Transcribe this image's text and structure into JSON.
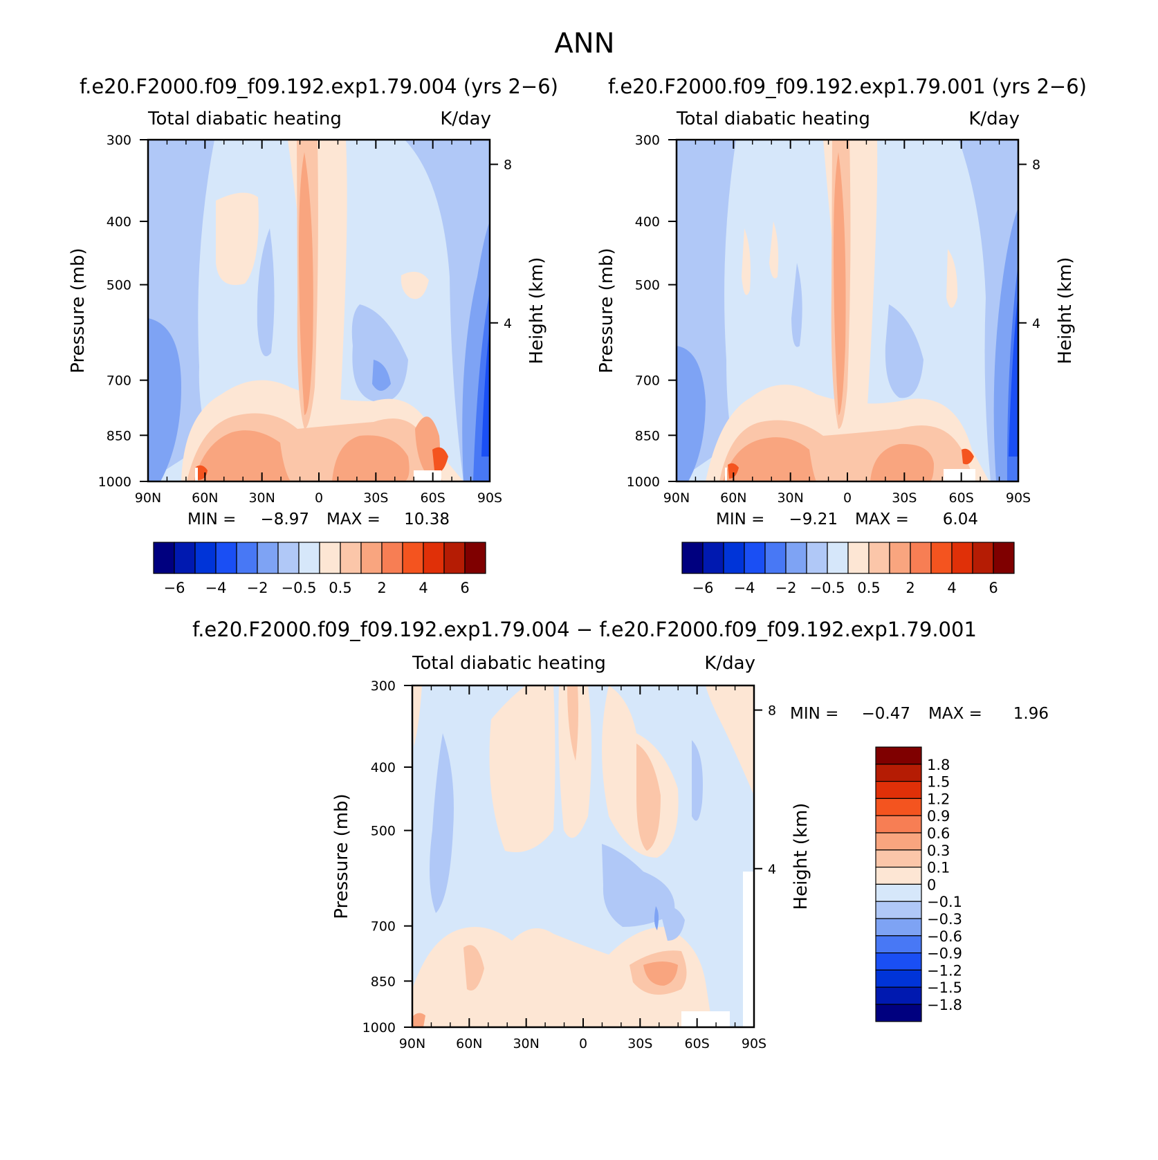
{
  "figure": {
    "title": "ANN"
  },
  "colors": {
    "full_palette": [
      "#00007f",
      "#0019b0",
      "#0034d8",
      "#1a4ff4",
      "#4878f5",
      "#7ea3f4",
      "#b0c8f7",
      "#d6e7fa",
      "#fde6d4",
      "#fbc6a9",
      "#f9a57f",
      "#f77e54",
      "#f4541f",
      "#e03008",
      "#b51c04",
      "#7f0000"
    ],
    "diff_palette": [
      "#00007f",
      "#0019b0",
      "#0034d8",
      "#1a4ff4",
      "#4878f5",
      "#7ea3f4",
      "#b0c8f7",
      "#d6e7fa",
      "#fde6d4",
      "#fbc6a9",
      "#f9a57f",
      "#f77e54",
      "#f4541f",
      "#e03008",
      "#b51c04",
      "#7f0000"
    ]
  },
  "chart_data": [
    {
      "type": "heatmap",
      "title": "f.e20.F2000.f09_f09.192.exp1.79.004 (yrs 2−6)",
      "subtitle_left": "Total diabatic heating",
      "subtitle_right": "K/day",
      "xlabel": "",
      "ylabel": "Pressure (mb)",
      "ylabel_right": "Height (km)",
      "x_ticks": [
        "90N",
        "60N",
        "30N",
        "0",
        "30S",
        "60S",
        "90S"
      ],
      "y_ticks": [
        "300",
        "400",
        "500",
        "700",
        "850",
        "1000"
      ],
      "y_ticks_right": [
        "8",
        "4"
      ],
      "min_label": "MIN =",
      "min_value": "−8.97",
      "max_label": "MAX =",
      "max_value": "10.38",
      "colorbar_labels": [
        "−6",
        "−4",
        "−2",
        "−0.5",
        "0.5",
        "2",
        "4",
        "6"
      ],
      "ylim": [
        1000,
        300
      ]
    },
    {
      "type": "heatmap",
      "title": "f.e20.F2000.f09_f09.192.exp1.79.001 (yrs 2−6)",
      "subtitle_left": "Total diabatic heating",
      "subtitle_right": "K/day",
      "xlabel": "",
      "ylabel": "Pressure (mb)",
      "ylabel_right": "Height (km)",
      "x_ticks": [
        "90N",
        "60N",
        "30N",
        "0",
        "30S",
        "60S",
        "90S"
      ],
      "y_ticks": [
        "300",
        "400",
        "500",
        "700",
        "850",
        "1000"
      ],
      "y_ticks_right": [
        "8",
        "4"
      ],
      "min_label": "MIN =",
      "min_value": "−9.21",
      "max_label": "MAX =",
      "max_value": "6.04",
      "colorbar_labels": [
        "−6",
        "−4",
        "−2",
        "−0.5",
        "0.5",
        "2",
        "4",
        "6"
      ],
      "ylim": [
        1000,
        300
      ]
    },
    {
      "type": "heatmap",
      "title": "f.e20.F2000.f09_f09.192.exp1.79.004 − f.e20.F2000.f09_f09.192.exp1.79.001",
      "subtitle_left": "Total diabatic heating",
      "subtitle_right": "K/day",
      "xlabel": "",
      "ylabel": "Pressure (mb)",
      "ylabel_right": "Height (km)",
      "x_ticks": [
        "90N",
        "60N",
        "30N",
        "0",
        "30S",
        "60S",
        "90S"
      ],
      "y_ticks": [
        "300",
        "400",
        "500",
        "700",
        "850",
        "1000"
      ],
      "y_ticks_right": [
        "8",
        "4"
      ],
      "min_label": "MIN =",
      "min_value": "−0.47",
      "max_label": "MAX =",
      "max_value": "1.96",
      "colorbar_labels": [
        "1.8",
        "1.5",
        "1.2",
        "0.9",
        "0.6",
        "0.3",
        "0.1",
        "0",
        "−0.1",
        "−0.3",
        "−0.6",
        "−0.9",
        "−1.2",
        "−1.5",
        "−1.8"
      ],
      "ylim": [
        1000,
        300
      ]
    }
  ]
}
